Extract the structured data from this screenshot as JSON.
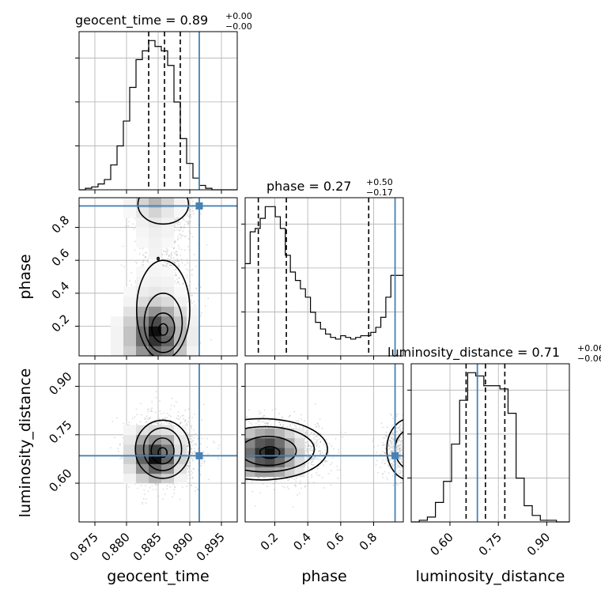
{
  "chart_data": {
    "type": "corner",
    "parameters": [
      "geocent_time",
      "phase",
      "luminosity_distance"
    ],
    "titles": [
      {
        "param": "geocent_time",
        "text": "geocent_time = 0.89",
        "plus": "+0.00",
        "minus": "−0.00"
      },
      {
        "param": "phase",
        "text": "phase = 0.27",
        "plus": "+0.50",
        "minus": "−0.17"
      },
      {
        "param": "luminosity_distance",
        "text": "luminosity_distance = 0.71",
        "plus": "+0.06",
        "minus": "−0.06"
      }
    ],
    "ranges": {
      "geocent_time": [
        0.8725,
        0.8975
      ],
      "phase": [
        0.02,
        0.98
      ],
      "luminosity_distance": [
        0.48,
        0.97
      ]
    },
    "ticks": {
      "geocent_time": {
        "values": [
          0.875,
          0.88,
          0.885,
          0.89,
          0.895
        ],
        "labels": [
          "0.875",
          "0.880",
          "0.885",
          "0.890",
          "0.895"
        ]
      },
      "phase": {
        "values": [
          0.2,
          0.4,
          0.6,
          0.8
        ],
        "labels": [
          "0.2",
          "0.4",
          "0.6",
          "0.8"
        ]
      },
      "luminosity_distance": {
        "values": [
          0.6,
          0.75,
          0.9
        ],
        "labels": [
          "0.60",
          "0.75",
          "0.90"
        ]
      }
    },
    "truths": {
      "geocent_time": 0.8915,
      "phase": 0.93,
      "luminosity_distance": 0.685
    },
    "quantiles": {
      "geocent_time": [
        0.8835,
        0.886,
        0.8885
      ],
      "phase": [
        0.1,
        0.27,
        0.77
      ],
      "luminosity_distance": [
        0.65,
        0.71,
        0.77
      ]
    },
    "histograms": {
      "geocent_time": {
        "edges": [
          0.8725,
          0.8735,
          0.8745,
          0.8755,
          0.8765,
          0.8775,
          0.8785,
          0.8795,
          0.8805,
          0.8815,
          0.8825,
          0.8835,
          0.8845,
          0.8855,
          0.8865,
          0.8875,
          0.8885,
          0.8895,
          0.8905,
          0.8915,
          0.8925,
          0.8935,
          0.8945,
          0.8955,
          0.8965,
          0.8975
        ],
        "counts": [
          0,
          1,
          2,
          4,
          7,
          17,
          30,
          47,
          70,
          89,
          95,
          102,
          98,
          95,
          85,
          60,
          35,
          18,
          8,
          3,
          1,
          0,
          0,
          0,
          0
        ]
      },
      "phase": {
        "edges": [
          0.02,
          0.0505,
          0.081,
          0.1115,
          0.142,
          0.1725,
          0.203,
          0.2335,
          0.264,
          0.2945,
          0.325,
          0.3555,
          0.386,
          0.4165,
          0.447,
          0.4775,
          0.508,
          0.5385,
          0.569,
          0.5995,
          0.63,
          0.6605,
          0.691,
          0.7215,
          0.752,
          0.7825,
          0.813,
          0.8435,
          0.874,
          0.9045,
          0.935,
          0.98
        ],
        "counts": [
          55,
          74,
          76,
          82,
          89,
          89,
          83,
          76,
          60,
          50,
          45,
          40,
          35,
          26,
          20,
          16,
          13,
          11,
          10,
          12,
          11,
          10,
          11,
          12,
          12,
          14,
          17,
          23,
          35,
          48,
          48
        ]
      },
      "luminosity_distance": {
        "edges": [
          0.48,
          0.505,
          0.53,
          0.555,
          0.58,
          0.605,
          0.63,
          0.655,
          0.68,
          0.705,
          0.73,
          0.755,
          0.78,
          0.805,
          0.83,
          0.855,
          0.88,
          0.905,
          0.93,
          0.955,
          0.97
        ],
        "counts": [
          0,
          1,
          3,
          12,
          25,
          48,
          75,
          92,
          90,
          84,
          84,
          82,
          67,
          27,
          10,
          4,
          1,
          1,
          0,
          0
        ]
      }
    },
    "density": {
      "geocent_time_vs_phase": {
        "x_edges": [
          0.8775,
          0.8795,
          0.8815,
          0.8835,
          0.8855,
          0.8875,
          0.8895,
          0.8915
        ],
        "y_edges": [
          0.02,
          0.08,
          0.14,
          0.2,
          0.26,
          0.32,
          0.38,
          0.44,
          0.5,
          0.56,
          0.62,
          0.68,
          0.74,
          0.8,
          0.86,
          0.92,
          0.98
        ],
        "values": [
          [
            0.05,
            0.2,
            0.45,
            0.6,
            0.5,
            0.25,
            0.05
          ],
          [
            0.05,
            0.25,
            0.6,
            0.85,
            0.65,
            0.3,
            0.08
          ],
          [
            0.05,
            0.25,
            0.6,
            1.0,
            0.6,
            0.3,
            0.08
          ],
          [
            0.04,
            0.2,
            0.5,
            0.75,
            0.5,
            0.25,
            0.06
          ],
          [
            0.02,
            0.12,
            0.35,
            0.45,
            0.35,
            0.15,
            0.04
          ],
          [
            0.0,
            0.05,
            0.15,
            0.2,
            0.15,
            0.06,
            0.02
          ],
          [
            0.0,
            0.03,
            0.08,
            0.1,
            0.08,
            0.03,
            0.0
          ],
          [
            0.0,
            0.02,
            0.05,
            0.06,
            0.05,
            0.02,
            0.0
          ],
          [
            0.0,
            0.0,
            0.03,
            0.04,
            0.03,
            0.0,
            0.0
          ],
          [
            0.0,
            0.0,
            0.02,
            0.03,
            0.02,
            0.0,
            0.0
          ],
          [
            0.0,
            0.0,
            0.02,
            0.05,
            0.02,
            0.0,
            0.0
          ],
          [
            0.0,
            0.0,
            0.03,
            0.06,
            0.03,
            0.0,
            0.0
          ],
          [
            0.0,
            0.0,
            0.04,
            0.07,
            0.05,
            0.0,
            0.0
          ],
          [
            0.0,
            0.02,
            0.06,
            0.1,
            0.06,
            0.02,
            0.0
          ],
          [
            0.0,
            0.03,
            0.1,
            0.18,
            0.1,
            0.03,
            0.0
          ],
          [
            0.0,
            0.05,
            0.18,
            0.3,
            0.18,
            0.05,
            0.0
          ]
        ]
      },
      "geocent_time_vs_luminosity_distance": {
        "x_edges": [
          0.8795,
          0.8815,
          0.8835,
          0.8855,
          0.8875,
          0.8895
        ],
        "y_edges": [
          0.6,
          0.63,
          0.66,
          0.69,
          0.72,
          0.75,
          0.78
        ],
        "values": [
          [
            0.05,
            0.2,
            0.3,
            0.2,
            0.05
          ],
          [
            0.12,
            0.45,
            0.65,
            0.45,
            0.12
          ],
          [
            0.2,
            0.65,
            1.0,
            0.65,
            0.2
          ],
          [
            0.15,
            0.55,
            0.8,
            0.55,
            0.15
          ],
          [
            0.1,
            0.35,
            0.45,
            0.35,
            0.1
          ],
          [
            0.04,
            0.12,
            0.15,
            0.12,
            0.04
          ]
        ]
      },
      "phase_vs_luminosity_distance": {
        "x_edges": [
          0.02,
          0.08,
          0.14,
          0.2,
          0.26,
          0.32,
          0.38
        ],
        "y_edges": [
          0.62,
          0.65,
          0.68,
          0.71,
          0.74,
          0.77
        ],
        "values": [
          [
            0.3,
            0.4,
            0.4,
            0.35,
            0.2,
            0.1
          ],
          [
            0.5,
            0.7,
            0.75,
            0.6,
            0.35,
            0.15
          ],
          [
            0.6,
            0.85,
            1.0,
            0.75,
            0.45,
            0.2
          ],
          [
            0.5,
            0.7,
            0.75,
            0.6,
            0.35,
            0.15
          ],
          [
            0.25,
            0.35,
            0.4,
            0.3,
            0.18,
            0.08
          ]
        ]
      }
    },
    "grid": true
  }
}
